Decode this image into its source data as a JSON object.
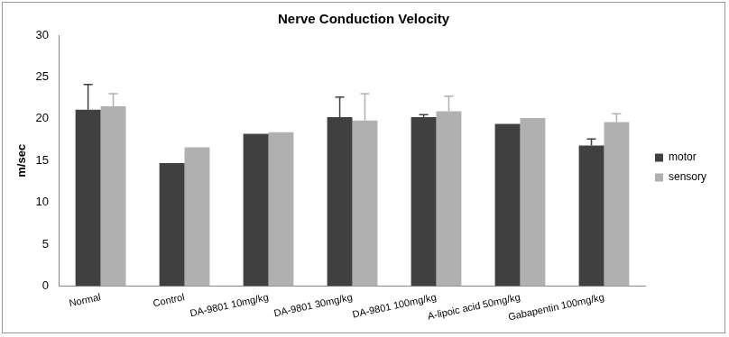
{
  "chart_data": {
    "type": "bar",
    "title": "Nerve Conduction Velocity",
    "y_label": "m/sec",
    "categories": [
      "Normal",
      "Control",
      "DA-9801 10mg/kg",
      "DA-9801 30mg/kg",
      "DA-9801 100mg/kg",
      "A-lipoic acid 50mg/kg",
      "Gabapentin 100mg/kg"
    ],
    "series": [
      {
        "name": "motor",
        "color": "#404040",
        "values": [
          21.1,
          14.7,
          18.2,
          20.2,
          20.2,
          19.4,
          16.8
        ],
        "errors": [
          3.0,
          null,
          null,
          2.4,
          0.3,
          null,
          0.8
        ]
      },
      {
        "name": "sensory",
        "color": "#b0b0b0",
        "values": [
          21.5,
          16.6,
          18.4,
          19.8,
          20.9,
          20.1,
          19.6
        ],
        "errors": [
          1.5,
          null,
          null,
          3.2,
          1.8,
          null,
          1.0
        ]
      }
    ],
    "ylim": [
      0,
      30
    ],
    "yticks": [
      0,
      5,
      10,
      15,
      20,
      25,
      30
    ],
    "grid": false,
    "legend": "right"
  }
}
